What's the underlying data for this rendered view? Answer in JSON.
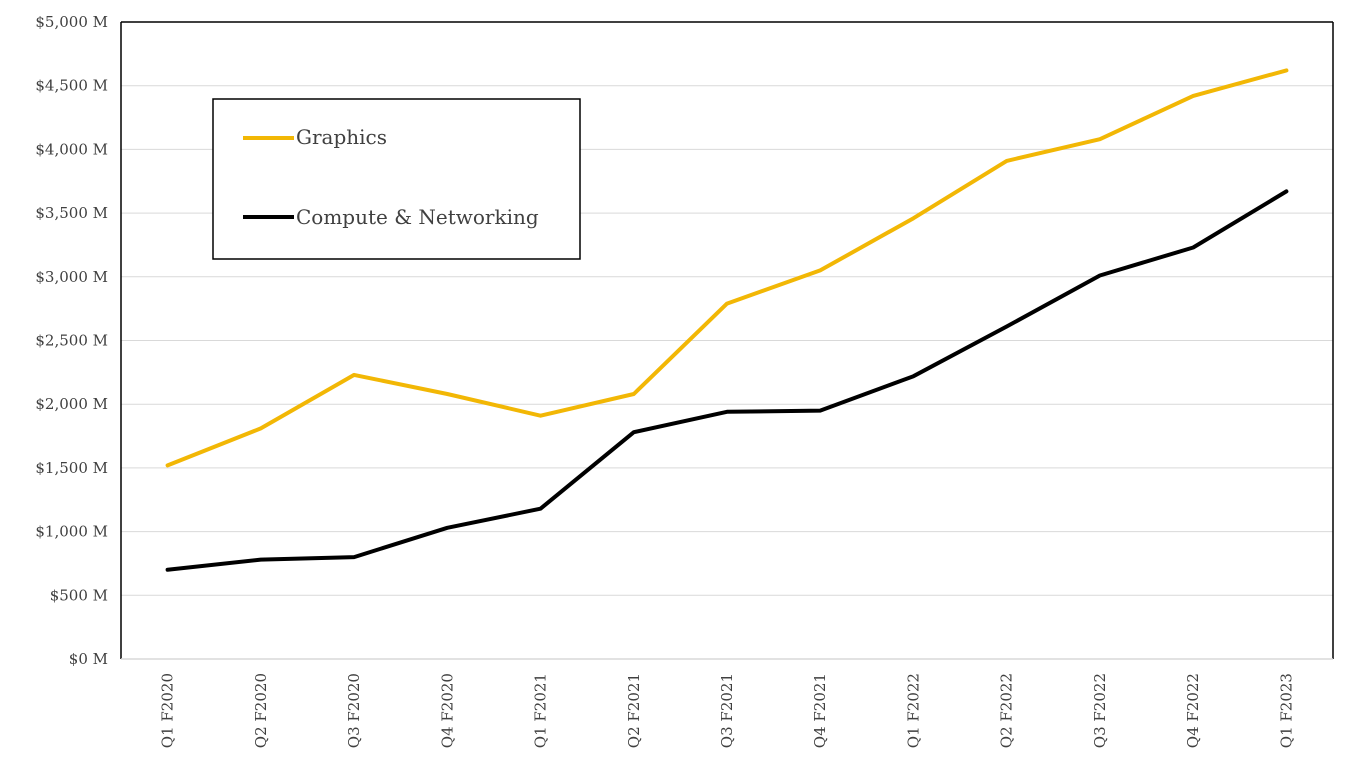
{
  "chart_data": {
    "type": "line",
    "title": "",
    "xlabel": "",
    "ylabel": "",
    "categories": [
      "Q1 F2020",
      "Q2 F2020",
      "Q3 F2020",
      "Q4 F2020",
      "Q1 F2021",
      "Q2 F2021",
      "Q3 F2021",
      "Q4 F2021",
      "Q1 F2022",
      "Q2 F2022",
      "Q3 F2022",
      "Q4 F2022",
      "Q1 F2023"
    ],
    "ylim": [
      0,
      5000
    ],
    "yticks": [
      0,
      500,
      1000,
      1500,
      2000,
      2500,
      3000,
      3500,
      4000,
      4500,
      5000
    ],
    "ytick_labels": [
      "$0 M",
      "$500 M",
      "$1,000 M",
      "$1,500 M",
      "$2,000 M",
      "$2,500 M",
      "$3,000 M",
      "$3,500 M",
      "$4,000 M",
      "$4,500 M",
      "$5,000 M"
    ],
    "grid": true,
    "legend_position": "top-left",
    "series": [
      {
        "name": "Graphics",
        "color": "#F2B705",
        "values": [
          1520,
          1810,
          2230,
          2080,
          1910,
          2080,
          2790,
          3050,
          3460,
          3910,
          4080,
          4420,
          4620
        ]
      },
      {
        "name": "Compute & Networking",
        "color": "#000000",
        "values": [
          700,
          780,
          800,
          1030,
          1180,
          1780,
          1940,
          1950,
          2220,
          2610,
          3010,
          3230,
          3670
        ]
      }
    ]
  }
}
